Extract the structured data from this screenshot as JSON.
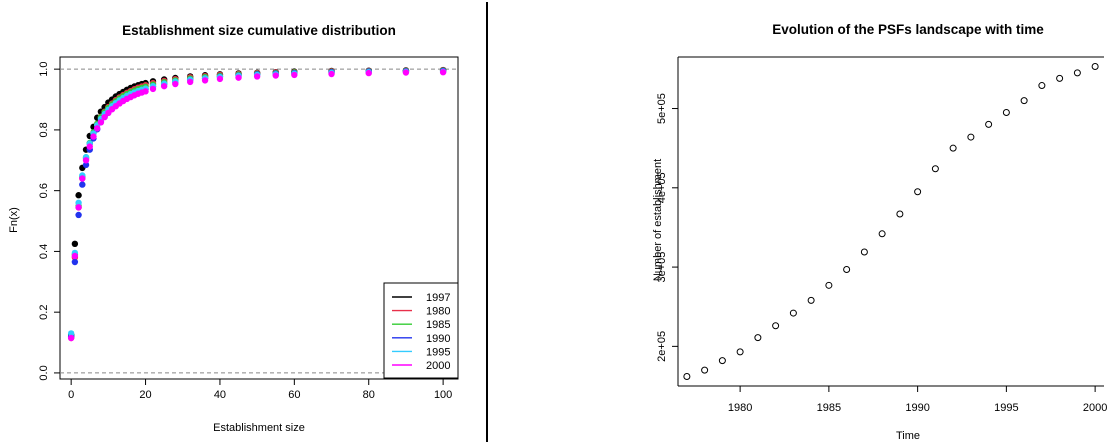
{
  "chart_data": [
    {
      "type": "scatter",
      "title": "Establishment size cumulative distribution",
      "xlabel": "Establishment size",
      "ylabel": "Fn(x)",
      "xlim": [
        -3,
        104
      ],
      "ylim": [
        -0.02,
        1.04
      ],
      "xticks": [
        "0",
        "20",
        "40",
        "60",
        "80",
        "100"
      ],
      "yticks": [
        "0.0",
        "0.2",
        "0.4",
        "0.6",
        "0.8",
        "1.0"
      ],
      "reference_lines": [
        0,
        1
      ],
      "legend_position": "bottom-right",
      "series": [
        {
          "name": "1997",
          "color": "#000000",
          "x": [
            0,
            1,
            2,
            3,
            4,
            5,
            6,
            7,
            8,
            9,
            10,
            11,
            12,
            13,
            14,
            15,
            16,
            17,
            18,
            19,
            20,
            22,
            25,
            28,
            32,
            36,
            40,
            45,
            50,
            55,
            60,
            70,
            80,
            90,
            100
          ],
          "values": [
            0.125,
            0.425,
            0.585,
            0.675,
            0.735,
            0.78,
            0.81,
            0.84,
            0.86,
            0.875,
            0.89,
            0.9,
            0.91,
            0.918,
            0.925,
            0.932,
            0.938,
            0.943,
            0.947,
            0.951,
            0.954,
            0.96,
            0.966,
            0.971,
            0.976,
            0.98,
            0.983,
            0.986,
            0.988,
            0.99,
            0.992,
            0.994,
            0.995,
            0.996,
            0.997
          ]
        },
        {
          "name": "1980",
          "color": "#e8304a",
          "x": [
            0,
            1,
            2,
            3,
            4,
            5,
            6,
            7,
            8,
            9,
            10,
            11,
            12,
            13,
            14,
            15,
            16,
            17,
            18,
            19,
            20,
            22,
            25,
            28,
            32,
            36,
            40,
            45,
            50,
            55,
            60,
            70,
            80,
            90,
            100
          ],
          "values": [
            0.115,
            0.38,
            0.545,
            0.64,
            0.705,
            0.755,
            0.79,
            0.82,
            0.843,
            0.86,
            0.875,
            0.887,
            0.898,
            0.907,
            0.915,
            0.922,
            0.928,
            0.934,
            0.939,
            0.943,
            0.947,
            0.954,
            0.961,
            0.967,
            0.973,
            0.977,
            0.981,
            0.984,
            0.987,
            0.989,
            0.99,
            0.993,
            0.994,
            0.995,
            0.996
          ]
        },
        {
          "name": "1985",
          "color": "#33cc33",
          "x": [
            0,
            1,
            2,
            3,
            4,
            5,
            6,
            7,
            8,
            9,
            10,
            11,
            12,
            13,
            14,
            15,
            16,
            17,
            18,
            19,
            20,
            22,
            25,
            28,
            32,
            36,
            40,
            45,
            50,
            55,
            60,
            70,
            80,
            90,
            100
          ],
          "values": [
            0.12,
            0.39,
            0.55,
            0.645,
            0.71,
            0.757,
            0.792,
            0.82,
            0.842,
            0.858,
            0.872,
            0.884,
            0.894,
            0.903,
            0.911,
            0.918,
            0.924,
            0.929,
            0.934,
            0.938,
            0.942,
            0.949,
            0.957,
            0.963,
            0.969,
            0.974,
            0.978,
            0.982,
            0.985,
            0.987,
            0.989,
            0.991,
            0.993,
            0.994,
            0.995
          ]
        },
        {
          "name": "1990",
          "color": "#2233ee",
          "x": [
            0,
            1,
            2,
            3,
            4,
            5,
            6,
            7,
            8,
            9,
            10,
            11,
            12,
            13,
            14,
            15,
            16,
            17,
            18,
            19,
            20,
            22,
            25,
            28,
            32,
            36,
            40,
            45,
            50,
            55,
            60,
            70,
            80,
            90,
            100
          ],
          "values": [
            0.12,
            0.365,
            0.52,
            0.62,
            0.685,
            0.735,
            0.772,
            0.802,
            0.826,
            0.845,
            0.86,
            0.873,
            0.884,
            0.893,
            0.901,
            0.908,
            0.915,
            0.92,
            0.925,
            0.93,
            0.934,
            0.942,
            0.951,
            0.958,
            0.965,
            0.97,
            0.975,
            0.979,
            0.983,
            0.985,
            0.987,
            0.99,
            0.992,
            0.993,
            0.994
          ]
        },
        {
          "name": "1995",
          "color": "#33ccff",
          "x": [
            0,
            1,
            2,
            3,
            4,
            5,
            6,
            7,
            8,
            9,
            10,
            11,
            12,
            13,
            14,
            15,
            16,
            17,
            18,
            19,
            20,
            22,
            25,
            28,
            32,
            36,
            40,
            45,
            50,
            55,
            60,
            70,
            80,
            90,
            100
          ],
          "values": [
            0.13,
            0.395,
            0.56,
            0.65,
            0.71,
            0.755,
            0.788,
            0.815,
            0.836,
            0.852,
            0.866,
            0.878,
            0.888,
            0.897,
            0.905,
            0.912,
            0.918,
            0.923,
            0.928,
            0.932,
            0.936,
            0.944,
            0.952,
            0.959,
            0.965,
            0.97,
            0.974,
            0.978,
            0.981,
            0.983,
            0.985,
            0.988,
            0.99,
            0.991,
            0.992
          ]
        },
        {
          "name": "2000",
          "color": "#ff00ff",
          "x": [
            0,
            1,
            2,
            3,
            4,
            5,
            6,
            7,
            8,
            9,
            10,
            11,
            12,
            13,
            14,
            15,
            16,
            17,
            18,
            19,
            20,
            22,
            25,
            28,
            32,
            36,
            40,
            45,
            50,
            55,
            60,
            70,
            80,
            90,
            100
          ],
          "values": [
            0.115,
            0.385,
            0.545,
            0.64,
            0.7,
            0.745,
            0.778,
            0.805,
            0.825,
            0.842,
            0.856,
            0.868,
            0.878,
            0.887,
            0.895,
            0.902,
            0.908,
            0.914,
            0.919,
            0.923,
            0.927,
            0.935,
            0.944,
            0.951,
            0.958,
            0.963,
            0.968,
            0.972,
            0.976,
            0.979,
            0.981,
            0.984,
            0.987,
            0.989,
            0.99
          ]
        }
      ]
    },
    {
      "type": "scatter",
      "title": "Evolution of the PSFs landscape with time",
      "xlabel": "Time",
      "ylabel": "Number of establishment",
      "xlim": [
        1976.5,
        2000.5
      ],
      "ylim": [
        150000,
        565000
      ],
      "xticks": [
        "1980",
        "1985",
        "1990",
        "1995",
        "2000"
      ],
      "yticks": [
        "2e+05",
        "3e+05",
        "4e+05",
        "5e+05"
      ],
      "series": [
        {
          "x": [
            1977,
            1978,
            1979,
            1980,
            1981,
            1982,
            1983,
            1984,
            1985,
            1986,
            1987,
            1988,
            1989,
            1990,
            1991,
            1992,
            1993,
            1994,
            1995,
            1996,
            1997,
            1998,
            1999,
            2000
          ],
          "values": [
            162000,
            170000,
            182000,
            193000,
            211000,
            226000,
            242000,
            258000,
            277000,
            297000,
            319000,
            342000,
            367000,
            395000,
            424000,
            450000,
            464000,
            480000,
            495000,
            510000,
            529000,
            538000,
            545000,
            553000
          ]
        }
      ]
    }
  ]
}
